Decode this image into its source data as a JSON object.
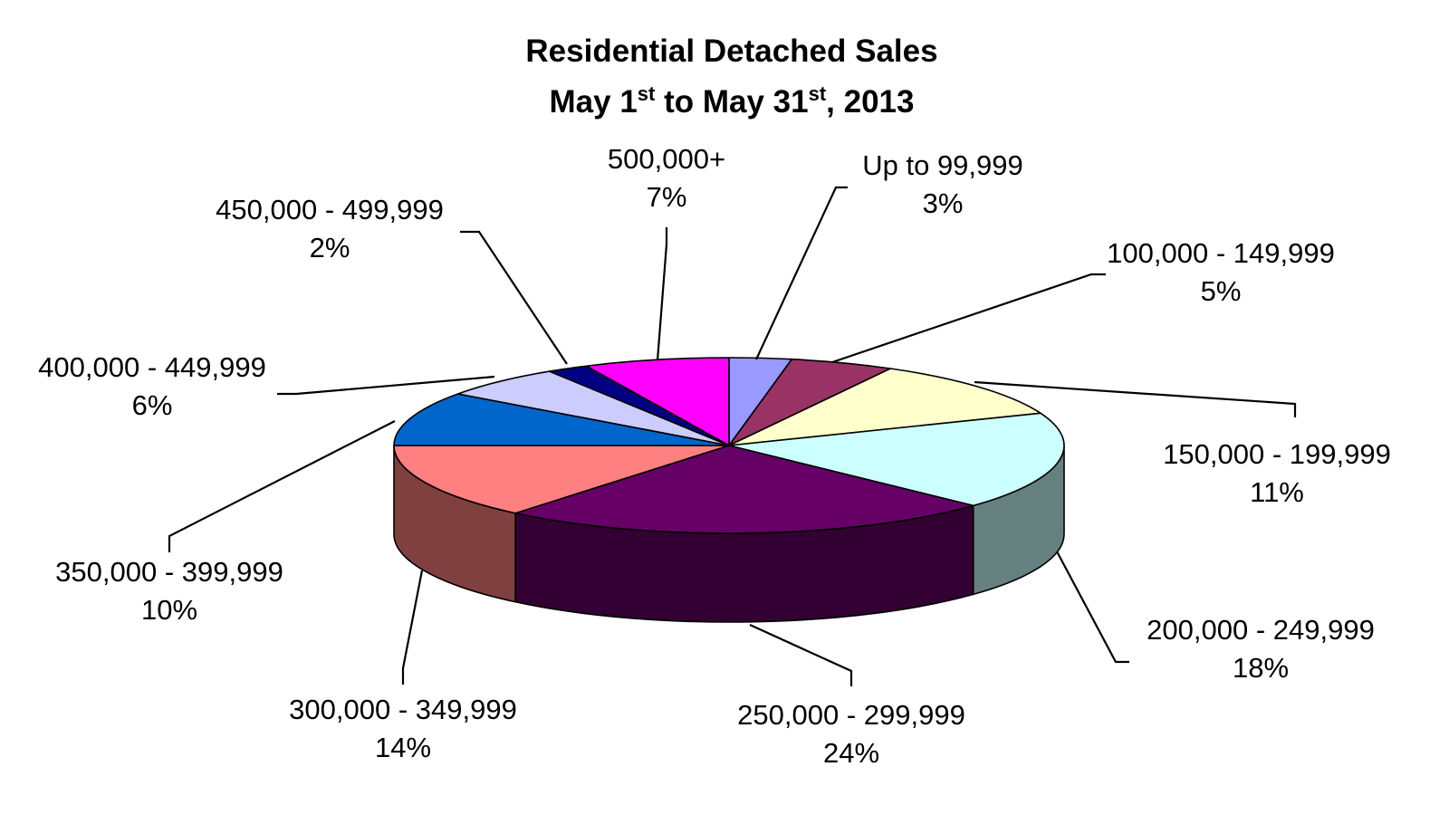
{
  "chart_data": {
    "type": "pie",
    "title_line1": "Residential Detached Sales",
    "title_line2": {
      "part1": "May 1",
      "sup1": "st",
      "part2": " to May 31",
      "sup2": "st",
      "part3": ", 2013"
    },
    "slices": [
      {
        "label": "Up to 99,999",
        "value": 3,
        "value_text": "3%",
        "color": "#9999FF"
      },
      {
        "label": "100,000 - 149,999",
        "value": 5,
        "value_text": "5%",
        "color": "#993366"
      },
      {
        "label": "150,000 - 199,999",
        "value": 11,
        "value_text": "11%",
        "color": "#FFFFCC"
      },
      {
        "label": "200,000 - 249,999",
        "value": 18,
        "value_text": "18%",
        "color": "#CCFFFF"
      },
      {
        "label": "250,000 - 299,999",
        "value": 24,
        "value_text": "24%",
        "color": "#660066"
      },
      {
        "label": "300,000 - 349,999",
        "value": 14,
        "value_text": "14%",
        "color": "#FF8080"
      },
      {
        "label": "350,000 - 399,999",
        "value": 10,
        "value_text": "10%",
        "color": "#0066CC"
      },
      {
        "label": "400,000 - 449,999",
        "value": 6,
        "value_text": "6%",
        "color": "#CCCCFF"
      },
      {
        "label": "450,000 - 499,999",
        "value": 2,
        "value_text": "2%",
        "color": "#000080"
      },
      {
        "label": "500,000+",
        "value": 7,
        "value_text": "7%",
        "color": "#FF00FF"
      }
    ]
  }
}
